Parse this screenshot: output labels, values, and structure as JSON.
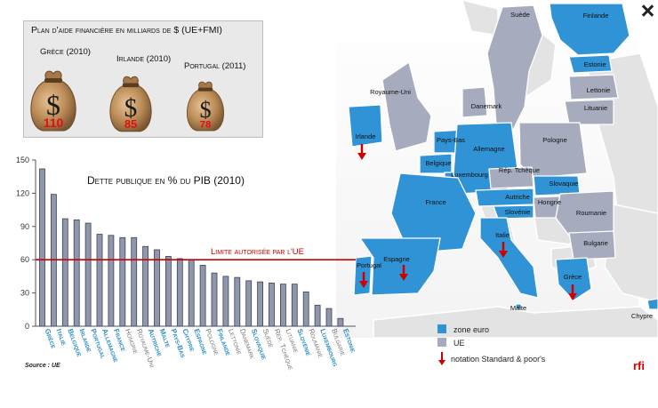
{
  "aid_panel": {
    "title": "Plan d'aide financière en milliards de $ (UE+FMI)",
    "packages": [
      {
        "label": "Grèce (2010)",
        "value": "110"
      },
      {
        "label": "Irlande (2010)",
        "value": "85"
      },
      {
        "label": "Portugal (2011)",
        "value": "78"
      }
    ]
  },
  "chart_data": {
    "type": "bar",
    "title": "Dette publique en % du PIB (2010)",
    "xlabel": "",
    "ylabel": "",
    "ylim": [
      0,
      150
    ],
    "yticks": [
      "0",
      "30",
      "60",
      "90",
      "120",
      "150"
    ],
    "grid": false,
    "categories": [
      "Grèce",
      "Italie",
      "Belgique",
      "Irlande",
      "Portugal",
      "Allemagne",
      "France",
      "Hongrie",
      "Royaume-Uni",
      "Autriche",
      "Malte",
      "Pays-Bas",
      "Chypre",
      "Espagne",
      "Pologne",
      "Finlande",
      "Lettonie",
      "Danemark",
      "Slovaquie",
      "Suède",
      "Rép. Tchèque",
      "Lituanie",
      "Slovénie",
      "Roumanie",
      "Luxembourg",
      "Bulgarie",
      "Estonie"
    ],
    "euro_zone": [
      true,
      true,
      true,
      true,
      true,
      true,
      true,
      false,
      false,
      true,
      true,
      true,
      true,
      true,
      false,
      true,
      false,
      false,
      true,
      false,
      false,
      false,
      true,
      false,
      true,
      false,
      true
    ],
    "values": [
      142,
      119,
      97,
      96,
      93,
      83,
      82,
      80,
      80,
      72,
      69,
      63,
      61,
      60,
      55,
      48,
      45,
      44,
      41,
      40,
      39,
      38,
      38,
      31,
      19,
      16,
      7
    ],
    "reference_line": {
      "value": 60,
      "label": "Limite autorisée par l'UE",
      "color": "#cc0000"
    },
    "source": "Source : UE",
    "bar_color": "#8f97ad",
    "euro_label_color": "#2a8dc8",
    "other_label_color": "#777777"
  },
  "map": {
    "countries": [
      "Suède",
      "Finlande",
      "Estonie",
      "Lettonie",
      "Lituanie",
      "Danemark",
      "Royaume-Uni",
      "Irlande",
      "Pays-Bas",
      "Belgique",
      "Luxembourg",
      "Allemagne",
      "Pologne",
      "Rép. Tchèque",
      "Slovaquie",
      "Autriche",
      "Hongrie",
      "Slovénie",
      "Roumanie",
      "France",
      "Italie",
      "Bulgarie",
      "Portugal",
      "Espagne",
      "Grèce",
      "Malte",
      "Chypre"
    ],
    "downgraded": [
      "Irlande",
      "Portugal",
      "Espagne",
      "Italie",
      "Grèce"
    ],
    "euro_color": "#2f93d6",
    "ue_color": "#a7abbe"
  },
  "legend": {
    "euro": "zone euro",
    "ue": "UE",
    "rating": "notation Standard & poor's"
  },
  "logo": "rfi"
}
